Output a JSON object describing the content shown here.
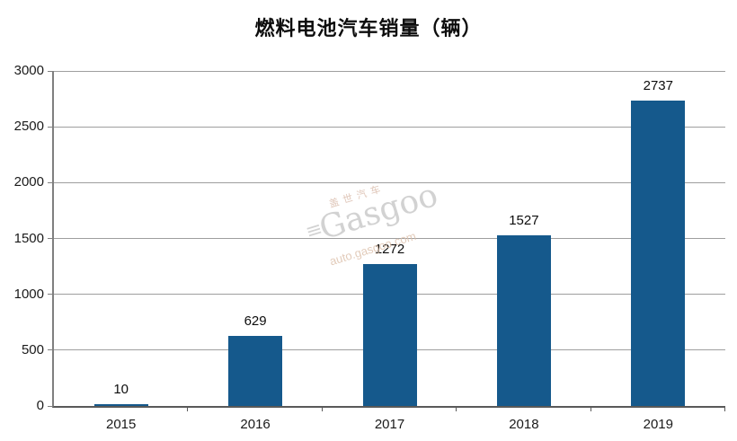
{
  "chart_data": {
    "type": "bar",
    "title": "燃料电池汽车销量（辆）",
    "categories": [
      "2015",
      "2016",
      "2017",
      "2018",
      "2019"
    ],
    "values": [
      10,
      629,
      1272,
      1527,
      2737
    ],
    "value_labels": [
      "10",
      "629",
      "1272",
      "1527",
      "2737"
    ],
    "xlabel": "",
    "ylabel": "",
    "ylim": [
      0,
      3000
    ],
    "yticks": [
      0,
      500,
      1000,
      1500,
      2000,
      2500,
      3000
    ],
    "grid": "horizontal",
    "legend_position": "none",
    "bar_color": "#15598c",
    "gridline_color": "#9e9e9e",
    "axis_color": "#595959",
    "text_color": "#0d0d0d"
  },
  "watermark": {
    "brand_cn": "盖世汽车",
    "brand_en": "Gasgoo",
    "logo_glyph": "≡",
    "domain": "auto.gasgoo.com"
  }
}
